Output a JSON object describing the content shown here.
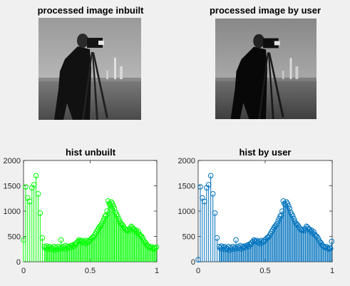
{
  "panels": {
    "img_inbuilt": {
      "title": "processed image inbuilt"
    },
    "img_user": {
      "title": "processed image by user"
    },
    "hist_inbuilt": {
      "title": "hist unbuilt"
    },
    "hist_user": {
      "title": "hist by user"
    }
  },
  "colors": {
    "background": "#f0f0f0",
    "stem_inbuilt": "#00ff00",
    "stem_user": "#0072bd",
    "axes": "#262626"
  },
  "chart_data": [
    {
      "type": "stem",
      "title": "hist unbuilt",
      "xlabel": "",
      "ylabel": "",
      "xlim": [
        0,
        1
      ],
      "ylim": [
        0,
        2000
      ],
      "x_ticks": [
        "0",
        "0.5",
        "1"
      ],
      "y_ticks": [
        "0",
        "500",
        "1000",
        "1500",
        "2000"
      ],
      "grid": false,
      "color": "#00ff00",
      "x": [
        0.0,
        0.016,
        0.031,
        0.047,
        0.063,
        0.078,
        0.094,
        0.11,
        0.125,
        0.141,
        0.157,
        0.165,
        0.173,
        0.18,
        0.188,
        0.196,
        0.204,
        0.212,
        0.22,
        0.227,
        0.235,
        0.243,
        0.251,
        0.259,
        0.267,
        0.275,
        0.282,
        0.29,
        0.298,
        0.306,
        0.314,
        0.322,
        0.329,
        0.337,
        0.345,
        0.353,
        0.361,
        0.369,
        0.376,
        0.384,
        0.392,
        0.4,
        0.408,
        0.416,
        0.424,
        0.431,
        0.439,
        0.447,
        0.455,
        0.463,
        0.471,
        0.478,
        0.486,
        0.494,
        0.502,
        0.51,
        0.518,
        0.525,
        0.533,
        0.541,
        0.549,
        0.557,
        0.565,
        0.573,
        0.58,
        0.588,
        0.596,
        0.604,
        0.612,
        0.62,
        0.627,
        0.635,
        0.643,
        0.651,
        0.659,
        0.667,
        0.675,
        0.682,
        0.69,
        0.698,
        0.706,
        0.714,
        0.722,
        0.729,
        0.737,
        0.745,
        0.753,
        0.761,
        0.769,
        0.776,
        0.784,
        0.792,
        0.8,
        0.808,
        0.816,
        0.824,
        0.831,
        0.839,
        0.847,
        0.855,
        0.863,
        0.871,
        0.878,
        0.886,
        0.894,
        0.902,
        0.91,
        0.918,
        0.925,
        0.933,
        0.941,
        0.949,
        0.957,
        0.965,
        0.973,
        0.98,
        0.988,
        0.996
      ],
      "values": [
        430,
        1480,
        1260,
        1190,
        1460,
        1520,
        1700,
        1340,
        960,
        470,
        300,
        270,
        310,
        250,
        280,
        300,
        240,
        270,
        250,
        300,
        230,
        280,
        250,
        300,
        250,
        280,
        430,
        260,
        300,
        270,
        320,
        250,
        300,
        280,
        310,
        280,
        320,
        330,
        300,
        350,
        340,
        380,
        400,
        430,
        410,
        400,
        420,
        380,
        400,
        360,
        420,
        380,
        410,
        400,
        440,
        460,
        480,
        490,
        520,
        560,
        600,
        630,
        670,
        700,
        720,
        750,
        800,
        850,
        900,
        920,
        1000,
        1200,
        1150,
        1120,
        1180,
        1150,
        1100,
        1050,
        980,
        940,
        900,
        850,
        800,
        760,
        740,
        720,
        680,
        650,
        630,
        620,
        640,
        610,
        650,
        700,
        680,
        650,
        640,
        600,
        620,
        560,
        590,
        540,
        510,
        500,
        470,
        420,
        390,
        370,
        330,
        310,
        290,
        280,
        300,
        270,
        250,
        280,
        260,
        290
      ]
    },
    {
      "type": "stem",
      "title": "hist by user",
      "xlabel": "",
      "ylabel": "",
      "xlim": [
        0,
        1
      ],
      "ylim": [
        0,
        2000
      ],
      "x_ticks": [
        "0",
        "0.5",
        "1"
      ],
      "y_ticks": [
        "0",
        "500",
        "1000",
        "1500",
        "2000"
      ],
      "grid": false,
      "color": "#0072bd",
      "x": [
        0.0,
        0.016,
        0.031,
        0.047,
        0.063,
        0.078,
        0.094,
        0.11,
        0.125,
        0.141,
        0.157,
        0.165,
        0.173,
        0.18,
        0.188,
        0.196,
        0.204,
        0.212,
        0.22,
        0.227,
        0.235,
        0.243,
        0.251,
        0.259,
        0.267,
        0.275,
        0.282,
        0.29,
        0.298,
        0.306,
        0.314,
        0.322,
        0.329,
        0.337,
        0.345,
        0.353,
        0.361,
        0.369,
        0.376,
        0.384,
        0.392,
        0.4,
        0.408,
        0.416,
        0.424,
        0.431,
        0.439,
        0.447,
        0.455,
        0.463,
        0.471,
        0.478,
        0.486,
        0.494,
        0.502,
        0.51,
        0.518,
        0.525,
        0.533,
        0.541,
        0.549,
        0.557,
        0.565,
        0.573,
        0.58,
        0.588,
        0.596,
        0.604,
        0.612,
        0.62,
        0.627,
        0.635,
        0.643,
        0.651,
        0.659,
        0.667,
        0.675,
        0.682,
        0.69,
        0.698,
        0.706,
        0.714,
        0.722,
        0.729,
        0.737,
        0.745,
        0.753,
        0.761,
        0.769,
        0.776,
        0.784,
        0.792,
        0.8,
        0.808,
        0.816,
        0.824,
        0.831,
        0.839,
        0.847,
        0.855,
        0.863,
        0.871,
        0.878,
        0.886,
        0.894,
        0.902,
        0.91,
        0.918,
        0.925,
        0.933,
        0.941,
        0.949,
        0.957,
        0.965,
        0.973,
        0.98,
        0.988,
        0.996
      ],
      "values": [
        40,
        1480,
        1260,
        1190,
        1460,
        1520,
        1700,
        1340,
        960,
        470,
        300,
        270,
        310,
        250,
        280,
        300,
        240,
        270,
        250,
        300,
        230,
        280,
        250,
        300,
        250,
        280,
        430,
        260,
        300,
        270,
        320,
        250,
        300,
        280,
        310,
        280,
        320,
        330,
        300,
        350,
        340,
        380,
        400,
        430,
        410,
        400,
        420,
        380,
        400,
        360,
        420,
        380,
        410,
        400,
        440,
        460,
        480,
        490,
        520,
        560,
        600,
        630,
        670,
        700,
        720,
        750,
        800,
        850,
        900,
        920,
        1000,
        1200,
        1150,
        1120,
        1180,
        1150,
        1100,
        1050,
        980,
        940,
        900,
        850,
        800,
        760,
        740,
        720,
        680,
        650,
        630,
        620,
        640,
        610,
        650,
        700,
        680,
        650,
        640,
        600,
        620,
        560,
        590,
        540,
        510,
        500,
        470,
        420,
        390,
        370,
        330,
        310,
        290,
        280,
        300,
        270,
        250,
        280,
        260,
        400
      ]
    }
  ]
}
